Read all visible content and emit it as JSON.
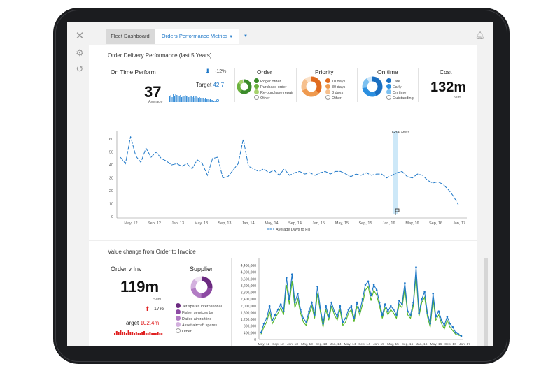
{
  "tabs": {
    "fleet": "Fleet Dashboard",
    "orders": "Orders Performance Metrics"
  },
  "section1": {
    "title": "Order Delivery Performance (last 5 Years)",
    "ontime": {
      "title": "On Time Perform",
      "change": "-12%",
      "value": "37",
      "sub": "Average",
      "target_label": "Target",
      "target_value": "42.7"
    },
    "order": {
      "title": "Order",
      "legend": [
        {
          "label": "Roger order",
          "color": "#3b8b2a"
        },
        {
          "label": "Purchase order",
          "color": "#6cb33e"
        },
        {
          "label": "Re-purchase repair",
          "color": "#a5d16b"
        },
        {
          "label": "Other",
          "color": "#ffffff"
        }
      ]
    },
    "priority": {
      "title": "Priority",
      "legend": [
        {
          "label": "10 days",
          "color": "#e06b1f"
        },
        {
          "label": "30 days",
          "color": "#ef9a4f"
        },
        {
          "label": "3 days",
          "color": "#f6c08e"
        },
        {
          "label": "Other",
          "color": "#ffffff"
        }
      ]
    },
    "ontime_donut": {
      "title": "On time",
      "legend": [
        {
          "label": "Late",
          "color": "#1a6fc1"
        },
        {
          "label": "Early",
          "color": "#2b8fe0"
        },
        {
          "label": "On time",
          "color": "#7cc0f0"
        },
        {
          "label": "Outstanding",
          "color": "#ffffff"
        }
      ]
    },
    "cost": {
      "title": "Cost",
      "value": "132m",
      "sub": "Sum"
    }
  },
  "line_chart": {
    "goal_label": "Goal Met!",
    "y_ticks": [
      "60",
      "50",
      "40",
      "30",
      "20",
      "10",
      "0"
    ],
    "x_ticks": [
      "May, 12",
      "Sep, 12",
      "Jan, 13",
      "May, 13",
      "Sep, 13",
      "Jan, 14",
      "May, 14",
      "Sep, 14",
      "Jan, 15",
      "May, 15",
      "Sep, 15",
      "Jan, 16",
      "May, 16",
      "Sep, 16",
      "Jan, 17"
    ],
    "legend": "Average Days to Fill"
  },
  "section2": {
    "title": "Value change from Order to Invoice",
    "orderinv": {
      "title": "Order v Inv",
      "value": "119m",
      "sub": "Sum",
      "change": "17%",
      "target_label": "Target",
      "target_value": "102.4m"
    },
    "supplier": {
      "title": "Supplier",
      "legend": [
        {
          "label": "Jet spares international",
          "color": "#6b2a80"
        },
        {
          "label": "Fisher services bv",
          "color": "#8d4aa3"
        },
        {
          "label": "Dailes aircraft inc",
          "color": "#b27cc4"
        },
        {
          "label": "Asset aircraft spares",
          "color": "#d3b0de"
        },
        {
          "label": "Other",
          "color": "#ffffff"
        }
      ]
    }
  },
  "chart_data": {
    "type": "line",
    "title": "",
    "y_ticks": [
      "4,400,000",
      "4,000,000",
      "3,600,000",
      "3,200,000",
      "2,800,000",
      "2,400,000",
      "2,000,000",
      "1,600,000",
      "1,200,000",
      "800,000",
      "400,000",
      "0"
    ],
    "x_ticks": [
      "May, 12",
      "Sep, 12",
      "Jan, 13",
      "May, 13",
      "Sep, 13",
      "Jan, 14",
      "May, 14",
      "Sep, 14",
      "Jan, 15",
      "May, 15",
      "Sep, 15",
      "Jan, 16",
      "May, 16",
      "Sep, 16",
      "Jan, 17"
    ],
    "ylim": [
      0,
      4600000
    ],
    "colors": {
      "series1": "#1f78c8",
      "series2": "#57b82a"
    },
    "series1": [
      0.4,
      0.9,
      1.2,
      1.9,
      1.1,
      1.4,
      1.7,
      2.0,
      1.6,
      3.5,
      2.3,
      3.7,
      2.1,
      2.6,
      1.7,
      1.2,
      1.0,
      1.6,
      2.1,
      1.4,
      3.0,
      1.8,
      0.9,
      1.9,
      1.3,
      2.1,
      1.6,
      1.3,
      1.9,
      1.0,
      1.2,
      1.7,
      1.9,
      1.2,
      2.1,
      1.6,
      2.3,
      3.1,
      3.3,
      2.5,
      3.1,
      2.8,
      2.1,
      1.4,
      2.0,
      1.6,
      1.9,
      1.7,
      1.4,
      2.2,
      2.0,
      3.2,
      1.6,
      1.4,
      2.1,
      4.1,
      1.5,
      2.3,
      2.7,
      1.5,
      0.9,
      2.6,
      1.3,
      1.6,
      1.1,
      0.8,
      1.3,
      0.9,
      0.7,
      0.4,
      0.3,
      0.2
    ],
    "series2": [
      0.3,
      0.7,
      1.0,
      1.6,
      0.9,
      1.2,
      1.5,
      1.8,
      1.4,
      3.1,
      2.0,
      3.3,
      1.8,
      2.3,
      1.5,
      1.0,
      0.8,
      1.4,
      1.9,
      1.2,
      2.6,
      1.6,
      0.7,
      1.7,
      1.1,
      1.9,
      1.4,
      1.1,
      1.7,
      0.8,
      1.0,
      1.5,
      1.7,
      1.0,
      1.9,
      1.4,
      2.0,
      2.8,
      3.0,
      2.2,
      2.8,
      2.5,
      1.9,
      1.2,
      1.8,
      1.4,
      1.7,
      1.5,
      1.2,
      2.0,
      1.8,
      2.9,
      1.4,
      1.2,
      1.9,
      3.7,
      1.3,
      2.1,
      2.4,
      1.3,
      0.7,
      2.3,
      1.1,
      1.4,
      0.9,
      0.6,
      1.1,
      0.7,
      0.5,
      0.3,
      0.25,
      0.2
    ]
  }
}
